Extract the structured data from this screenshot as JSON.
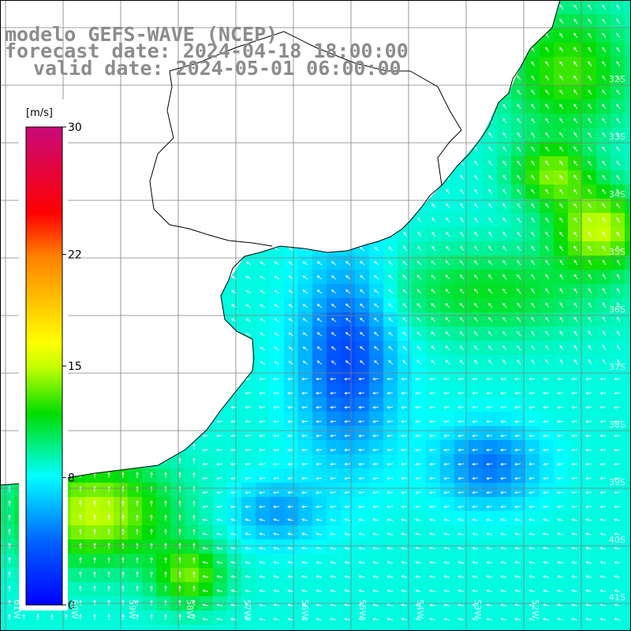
{
  "title": {
    "line1": "modelo GEFS-WAVE (NCEP)",
    "line2": "forecast date: 2024-04-18 18:00:00",
    "line3": "valid date: 2024-05-01 06:00:00"
  },
  "colorbar": {
    "unit": "[m/s]",
    "min": 0,
    "max": 30,
    "tick_labels": [
      "30",
      "22",
      "15",
      "8",
      "0"
    ],
    "tick_values": [
      30,
      22,
      15,
      8,
      0
    ]
  },
  "lat_labels": [
    "32S",
    "33S",
    "34S",
    "35S",
    "36S",
    "37S",
    "38S",
    "39S",
    "40S",
    "41S"
  ],
  "lon_labels": [
    "61W",
    "60W",
    "59W",
    "58W",
    "57W",
    "56W",
    "55W",
    "54W",
    "53W",
    "52W"
  ],
  "colors": {
    "land": "#ffffff",
    "grid": "#808080",
    "coast": "#000000",
    "arrow": "#ffffff"
  }
}
